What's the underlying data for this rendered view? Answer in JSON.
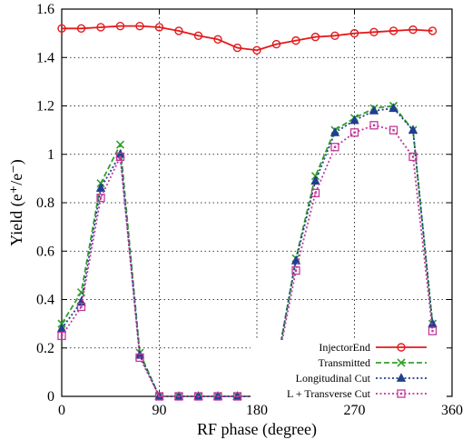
{
  "chart_data": {
    "type": "line",
    "xlabel": "RF phase (degree)",
    "ylabel": "Yield (e⁺/e⁻)",
    "xlim": [
      0,
      360
    ],
    "ylim": [
      0,
      1.6
    ],
    "xticks": [
      0,
      90,
      180,
      270,
      360
    ],
    "yticks": [
      0,
      0.2,
      0.4,
      0.6,
      0.8,
      1,
      1.2,
      1.4,
      1.6
    ],
    "grid": "dotted at tick positions",
    "legend_position": "bottom-right",
    "x": [
      0,
      18,
      36,
      54,
      72,
      90,
      108,
      126,
      144,
      162,
      180,
      198,
      216,
      234,
      252,
      270,
      288,
      306,
      324,
      342
    ],
    "series": [
      {
        "name": "InjectorEnd",
        "color": "#e31a1c",
        "line": "solid",
        "marker": "circle",
        "values": [
          1.52,
          1.52,
          1.525,
          1.53,
          1.53,
          1.525,
          1.51,
          1.49,
          1.475,
          1.44,
          1.43,
          1.455,
          1.47,
          1.485,
          1.49,
          1.5,
          1.505,
          1.51,
          1.515,
          1.51
        ]
      },
      {
        "name": "Transmitted",
        "color": "#33a02c",
        "line": "dashed",
        "marker": "x",
        "values": [
          0.3,
          0.43,
          0.88,
          1.04,
          0.18,
          0.0,
          0.0,
          0.0,
          0.0,
          0.0,
          0.0,
          0.12,
          0.57,
          0.91,
          1.1,
          1.15,
          1.19,
          1.2,
          1.1,
          0.3
        ]
      },
      {
        "name": "Longitudinal Cut",
        "color": "#1f3f8f",
        "line": "dotted",
        "marker": "triangle",
        "values": [
          0.28,
          0.39,
          0.86,
          1.0,
          0.17,
          0.0,
          0.0,
          0.0,
          0.0,
          0.0,
          0.0,
          0.12,
          0.56,
          0.89,
          1.09,
          1.14,
          1.18,
          1.19,
          1.1,
          0.3
        ]
      },
      {
        "name": "L + Transverse Cut",
        "color": "#c2399b",
        "line": "dotted",
        "marker": "square",
        "values": [
          0.25,
          0.37,
          0.82,
          0.99,
          0.16,
          0.0,
          0.0,
          0.0,
          0.0,
          0.0,
          0.0,
          0.11,
          0.52,
          0.84,
          1.03,
          1.09,
          1.12,
          1.1,
          0.99,
          0.27
        ]
      }
    ]
  }
}
